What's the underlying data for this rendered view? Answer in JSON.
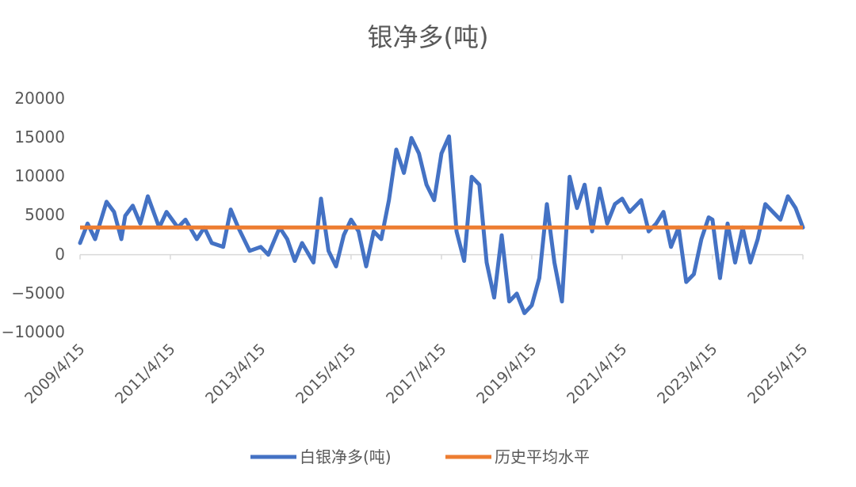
{
  "chart_data": {
    "type": "line",
    "title": "银净多(吨)",
    "xlabel": "",
    "ylabel": "",
    "ylim": [
      -10000,
      20000
    ],
    "yticks": [
      20000,
      15000,
      10000,
      5000,
      0,
      -5000,
      -10000
    ],
    "ytick_labels": [
      "20000",
      "15000",
      "10000",
      "5000",
      "0",
      "−5000",
      "−10000"
    ],
    "xlim": [
      "2009/4/15",
      "2025/4/15"
    ],
    "xtick_labels": [
      "2009/4/15",
      "2011/4/15",
      "2013/4/15",
      "2015/4/15",
      "2017/4/15",
      "2019/4/15",
      "2021/4/15",
      "2023/4/15",
      "2025/4/15"
    ],
    "grid": false,
    "legend_position": "bottom",
    "series": [
      {
        "name": "白银净多(吨)",
        "color": "#4472C4",
        "x": [
          "2009/4/15",
          "2009/6/15",
          "2009/8/15",
          "2009/11/15",
          "2010/1/15",
          "2010/3/15",
          "2010/4/15",
          "2010/6/15",
          "2010/8/15",
          "2010/10/15",
          "2011/1/15",
          "2011/3/15",
          "2011/6/15",
          "2011/8/15",
          "2011/11/15",
          "2012/1/15",
          "2012/3/15",
          "2012/6/15",
          "2012/8/15",
          "2012/10/15",
          "2013/1/15",
          "2013/4/15",
          "2013/6/15",
          "2013/9/15",
          "2013/11/15",
          "2014/1/15",
          "2014/3/15",
          "2014/6/15",
          "2014/8/15",
          "2014/10/15",
          "2014/12/15",
          "2015/2/15",
          "2015/4/15",
          "2015/6/15",
          "2015/8/15",
          "2015/10/15",
          "2015/12/15",
          "2016/2/15",
          "2016/4/15",
          "2016/6/15",
          "2016/8/15",
          "2016/10/15",
          "2016/12/15",
          "2017/2/15",
          "2017/4/15",
          "2017/6/15",
          "2017/8/15",
          "2017/10/15",
          "2017/12/15",
          "2018/2/15",
          "2018/4/15",
          "2018/6/15",
          "2018/8/15",
          "2018/10/15",
          "2018/12/15",
          "2019/2/15",
          "2019/4/15",
          "2019/6/15",
          "2019/8/15",
          "2019/10/15",
          "2019/12/15",
          "2020/2/15",
          "2020/4/15",
          "2020/6/15",
          "2020/8/15",
          "2020/10/15",
          "2020/12/15",
          "2021/2/15",
          "2021/4/15",
          "2021/6/15",
          "2021/9/15",
          "2021/11/15",
          "2022/1/15",
          "2022/3/15",
          "2022/5/15",
          "2022/7/15",
          "2022/9/15",
          "2022/11/15",
          "2023/1/15",
          "2023/3/15",
          "2023/4/15",
          "2023/6/15",
          "2023/8/15",
          "2023/10/15",
          "2023/12/15",
          "2024/2/15",
          "2024/4/15",
          "2024/6/15",
          "2024/8/15",
          "2024/10/15",
          "2024/12/15",
          "2025/2/15",
          "2025/4/15"
        ],
        "y": [
          1500,
          4000,
          2000,
          6800,
          5500,
          2000,
          5000,
          6300,
          4000,
          7500,
          3500,
          5500,
          3500,
          4500,
          2000,
          3500,
          1500,
          1000,
          5800,
          3500,
          500,
          1000,
          0,
          3500,
          2000,
          -800,
          1500,
          -1000,
          7200,
          500,
          -1500,
          2500,
          4500,
          3000,
          -1500,
          3000,
          2000,
          7000,
          13500,
          10500,
          15000,
          13000,
          9000,
          7000,
          13000,
          15200,
          3000,
          -800,
          10000,
          9000,
          -1000,
          -5500,
          2500,
          -6000,
          -5000,
          -7500,
          -6500,
          -3000,
          6500,
          -1000,
          -6000,
          10000,
          6000,
          9000,
          3000,
          8500,
          4000,
          6500,
          7200,
          5500,
          7000,
          3000,
          4000,
          5500,
          1000,
          3500,
          -3500,
          -2500,
          2000,
          4800,
          4500,
          -3000,
          4000,
          -1000,
          3500,
          -1000,
          2000,
          6500,
          5500,
          4500,
          7500,
          6000,
          3500
        ]
      },
      {
        "name": "历史平均水平",
        "color": "#ED7D31",
        "value": 3500
      }
    ]
  }
}
